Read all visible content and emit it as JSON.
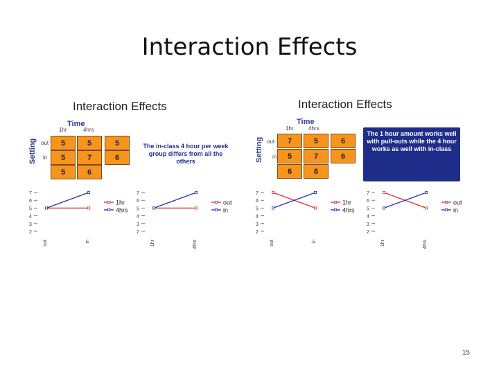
{
  "slide": {
    "title": "Interaction Effects",
    "page_number": "15"
  },
  "panels": [
    {
      "heading": "Interaction Effects",
      "time_label": "Time",
      "setting_label": "Setting",
      "col_headers": [
        "1hr",
        "4hrs"
      ],
      "row_headers": [
        "out",
        "in"
      ],
      "cells": [
        [
          "5",
          "5",
          "5"
        ],
        [
          "5",
          "7",
          "6"
        ],
        [
          "5",
          "6",
          ""
        ]
      ],
      "note": "The in-class 4 hour per week group differs from all the others",
      "note_boxed": false
    },
    {
      "heading": "Interaction Effects",
      "time_label": "Time",
      "setting_label": "Setting",
      "col_headers": [
        "1hr",
        "4hrs"
      ],
      "row_headers": [
        "out",
        "in"
      ],
      "cells": [
        [
          "7",
          "5",
          "6"
        ],
        [
          "5",
          "7",
          "6"
        ],
        [
          "6",
          "6",
          ""
        ]
      ],
      "note": "The 1 hour amount works well with pull-outs while the 4 hour works as well with in-class",
      "note_boxed": true
    }
  ],
  "chart_data": [
    {
      "type": "line",
      "categories": [
        "out",
        "in"
      ],
      "series": [
        {
          "name": "1hr",
          "values": [
            5,
            5
          ],
          "color": "#e03030"
        },
        {
          "name": "4hrs",
          "values": [
            5,
            7
          ],
          "color": "#2a35a8"
        }
      ],
      "y_ticks": [
        "2",
        "3",
        "4",
        "5",
        "6",
        "7"
      ],
      "ylim": [
        2,
        7
      ]
    },
    {
      "type": "line",
      "categories": [
        "1hr",
        "4hrs"
      ],
      "series": [
        {
          "name": "out",
          "values": [
            5,
            5
          ],
          "color": "#e03030"
        },
        {
          "name": "in",
          "values": [
            5,
            7
          ],
          "color": "#2a35a8"
        }
      ],
      "y_ticks": [
        "2",
        "3",
        "4",
        "5",
        "6",
        "7"
      ],
      "ylim": [
        2,
        7
      ]
    },
    {
      "type": "line",
      "categories": [
        "out",
        "in"
      ],
      "series": [
        {
          "name": "1hr",
          "values": [
            7,
            5
          ],
          "color": "#e03030"
        },
        {
          "name": "4hrs",
          "values": [
            5,
            7
          ],
          "color": "#2a35a8"
        }
      ],
      "y_ticks": [
        "2",
        "3",
        "4",
        "5",
        "6",
        "7"
      ],
      "ylim": [
        2,
        7
      ]
    },
    {
      "type": "line",
      "categories": [
        "1hr",
        "4hrs"
      ],
      "series": [
        {
          "name": "out",
          "values": [
            7,
            5
          ],
          "color": "#e03030"
        },
        {
          "name": "in",
          "values": [
            5,
            7
          ],
          "color": "#2a35a8"
        }
      ],
      "y_ticks": [
        "2",
        "3",
        "4",
        "5",
        "6",
        "7"
      ],
      "ylim": [
        2,
        7
      ]
    }
  ]
}
